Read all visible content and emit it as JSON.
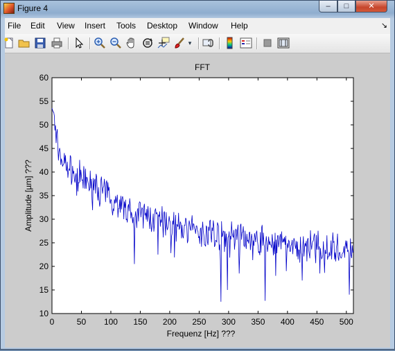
{
  "window": {
    "title": "Figure 4",
    "controls": {
      "minimize": "–",
      "maximize": "□",
      "close": "✕"
    }
  },
  "menu": {
    "items": [
      "File",
      "Edit",
      "View",
      "Insert",
      "Tools",
      "Desktop",
      "Window",
      "Help"
    ],
    "dock_arrow": "↘"
  },
  "toolbar": {
    "icons": [
      "new-figure-icon",
      "open-file-icon",
      "save-icon",
      "print-icon",
      "pointer-icon",
      "zoom-in-icon",
      "zoom-out-icon",
      "pan-hand-icon",
      "rotate-3d-icon",
      "data-cursor-icon",
      "brush-icon",
      "link-plot-icon",
      "colorbar-icon",
      "legend-icon",
      "hide-plot-tools-icon",
      "show-plot-tools-icon"
    ]
  },
  "chart_data": {
    "type": "line",
    "title": "FFT",
    "xlabel": "Frequenz [Hz] ???",
    "ylabel": "Amplitude [µm] ???",
    "xlim": [
      0,
      512
    ],
    "ylim": [
      10,
      60
    ],
    "xticks": [
      0,
      50,
      100,
      150,
      200,
      250,
      300,
      350,
      400,
      450,
      500
    ],
    "yticks": [
      10,
      15,
      20,
      25,
      30,
      35,
      40,
      45,
      50,
      55,
      60
    ],
    "grid": false,
    "series_color": "#0000c8",
    "trend": {
      "x": [
        0,
        3,
        6,
        10,
        20,
        40,
        60,
        80,
        100,
        130,
        160,
        200,
        250,
        300,
        350,
        400,
        450,
        500,
        512
      ],
      "y": [
        55,
        52,
        49,
        45,
        42,
        39.5,
        38,
        36.5,
        34.5,
        32,
        30.5,
        29,
        27.5,
        26.5,
        25.5,
        24.5,
        24,
        23.5,
        23.5
      ]
    },
    "dips": [
      {
        "x": 140,
        "y": 20.5
      },
      {
        "x": 180,
        "y": 22.5
      },
      {
        "x": 287,
        "y": 12.5
      },
      {
        "x": 298,
        "y": 15
      },
      {
        "x": 318,
        "y": 18.5
      },
      {
        "x": 362,
        "y": 12.7
      },
      {
        "x": 380,
        "y": 18
      },
      {
        "x": 398,
        "y": 19
      },
      {
        "x": 425,
        "y": 17
      },
      {
        "x": 455,
        "y": 18.5
      },
      {
        "x": 505,
        "y": 14
      }
    ]
  }
}
